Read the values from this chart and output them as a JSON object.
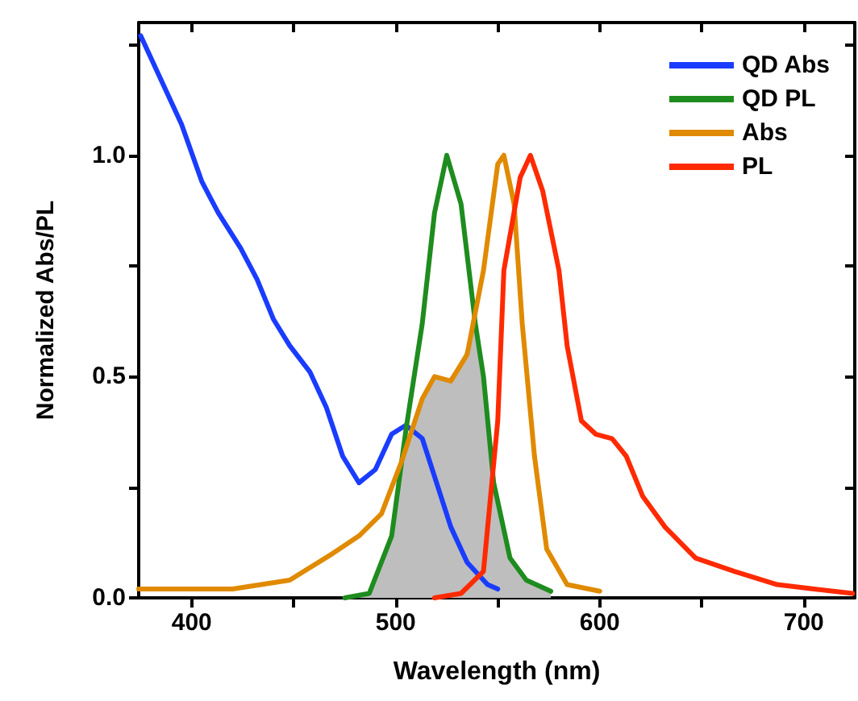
{
  "chart_data": {
    "type": "line",
    "xlabel": "Wavelength (nm)",
    "ylabel": "Normalized Abs/PL",
    "xlim": [
      374,
      725
    ],
    "ylim": [
      0,
      1.3
    ],
    "xticks": [
      400,
      {
        "value": 450,
        "label": null
      },
      500,
      {
        "value": 550,
        "label": null
      },
      600,
      {
        "value": 650,
        "label": null
      },
      700
    ],
    "yticks": [
      {
        "value": 0,
        "label": "0.0"
      },
      {
        "value": 0.25,
        "label": null
      },
      0.5,
      {
        "value": 0.75,
        "label": null
      },
      {
        "value": 1,
        "label": "1.0"
      },
      {
        "value": 1.25,
        "label": null
      }
    ],
    "legend": "top right",
    "grid": false,
    "marker": "none",
    "line_style": "solid",
    "series": [
      {
        "type": "area",
        "color": "#bebebe",
        "x": [
          476,
          487,
          498,
          505,
          513,
          519,
          525,
          532,
          539,
          543,
          548,
          556,
          564,
          576
        ],
        "values": [
          0,
          0.01,
          0.14,
          0.34,
          0.45,
          0.5,
          0.49,
          0.53,
          0.62,
          0.5,
          0.26,
          0.09,
          0.04,
          0.015
        ]
      },
      {
        "name": "QD Abs",
        "color": "#1a3cff",
        "x": [
          375,
          395,
          405,
          413,
          424,
          432,
          440,
          448,
          458,
          466,
          474,
          482,
          490,
          498,
          505,
          513,
          520,
          527,
          535,
          545,
          550
        ],
        "values": [
          1.27,
          1.07,
          0.94,
          0.87,
          0.79,
          0.72,
          0.63,
          0.57,
          0.51,
          0.43,
          0.32,
          0.26,
          0.29,
          0.37,
          0.39,
          0.36,
          0.26,
          0.16,
          0.08,
          0.03,
          0.02
        ]
      },
      {
        "name": "QD PL",
        "color": "#1e8c1e",
        "x": [
          475,
          487,
          498,
          505,
          513,
          519,
          525,
          532,
          539,
          543,
          548,
          556,
          564,
          576
        ],
        "values": [
          0,
          0.01,
          0.14,
          0.38,
          0.62,
          0.87,
          1.0,
          0.89,
          0.62,
          0.5,
          0.26,
          0.09,
          0.04,
          0.015
        ]
      },
      {
        "name": "Abs",
        "color": "#e08a00",
        "x": [
          374,
          420,
          448,
          469,
          482,
          493,
          503,
          513,
          519,
          527,
          535,
          543,
          550,
          553,
          558,
          562,
          568,
          574,
          584,
          600
        ],
        "values": [
          0.02,
          0.02,
          0.04,
          0.1,
          0.14,
          0.19,
          0.31,
          0.45,
          0.5,
          0.49,
          0.55,
          0.74,
          0.98,
          1.0,
          0.89,
          0.62,
          0.32,
          0.11,
          0.03,
          0.015
        ]
      },
      {
        "name": "PL",
        "color": "#ff2a00",
        "x": [
          519,
          532,
          543,
          550,
          553,
          561,
          566,
          572,
          580,
          584,
          591,
          598,
          606,
          613,
          621,
          632,
          647,
          666,
          687,
          705,
          724
        ],
        "values": [
          0,
          0.01,
          0.06,
          0.4,
          0.74,
          0.95,
          1.0,
          0.92,
          0.74,
          0.57,
          0.4,
          0.37,
          0.36,
          0.32,
          0.23,
          0.16,
          0.09,
          0.06,
          0.03,
          0.02,
          0.01
        ]
      }
    ]
  }
}
